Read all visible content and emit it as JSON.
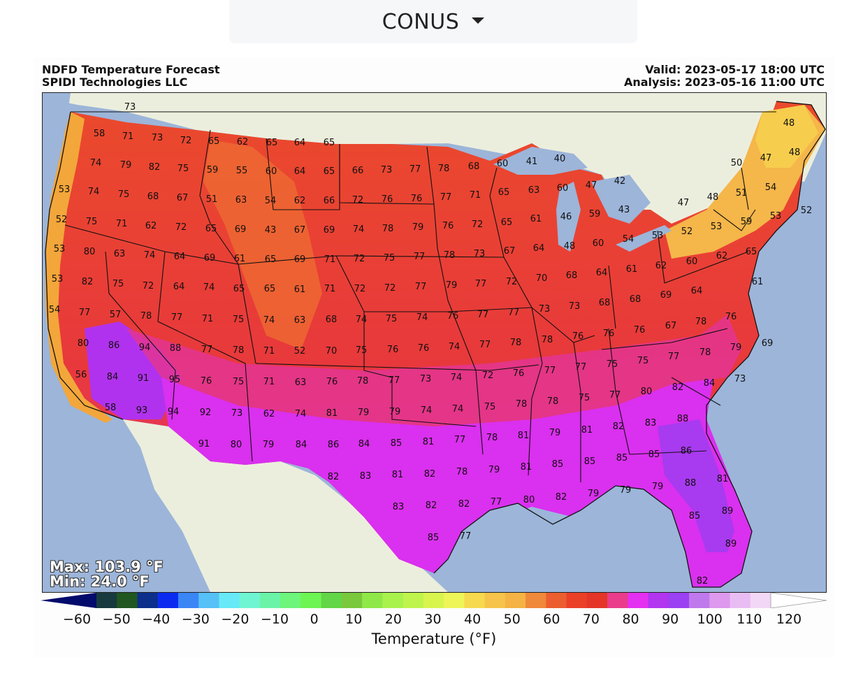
{
  "dropdown": {
    "selected": "CONUS"
  },
  "header": {
    "title_line1": "NDFD Temperature Forecast",
    "title_line2": "SPIDI Technologies LLC",
    "valid": "Valid: 2023-05-17 18:00 UTC",
    "analysis": "Analysis: 2023-05-16 11:00 UTC"
  },
  "stats": {
    "max": "Max: 103.9 °F",
    "min": "Min: 24.0 °F"
  },
  "colorbar": {
    "title": "Temperature (°F)",
    "ticks": [
      "−60",
      "−50",
      "−40",
      "−30",
      "−20",
      "−10",
      "0",
      "10",
      "20",
      "30",
      "40",
      "50",
      "60",
      "70",
      "80",
      "90",
      "100",
      "110",
      "120"
    ],
    "colors": [
      "#020a6b",
      "#173a3f",
      "#20561f",
      "#0b2f8a",
      "#0b2cf0",
      "#3a86f5",
      "#55c1f7",
      "#67e9f7",
      "#70f5d2",
      "#6bf4a8",
      "#6ef57b",
      "#6df553",
      "#62d646",
      "#7ac83c",
      "#90e848",
      "#a9f24c",
      "#bff44c",
      "#d8f54e",
      "#eef557",
      "#f7d94e",
      "#f7c44b",
      "#f5b345",
      "#f0893a",
      "#ec5e2f",
      "#ea4027",
      "#e43528",
      "#ea3c8a",
      "#e430f0",
      "#b235f0",
      "#9b40f2",
      "#c079ec",
      "#dd99ee",
      "#e9bdf3",
      "#f3d7f6",
      "#ffffff"
    ]
  },
  "map_labels": [
    [
      "73",
      185,
      152
    ],
    [
      "58",
      141,
      190
    ],
    [
      "71",
      182,
      194
    ],
    [
      "73",
      224,
      196
    ],
    [
      "72",
      265,
      200
    ],
    [
      "65",
      305,
      201
    ],
    [
      "62",
      346,
      202
    ],
    [
      "65",
      388,
      203
    ],
    [
      "64",
      428,
      203
    ],
    [
      "65",
      470,
      203
    ],
    [
      "74",
      136,
      232
    ],
    [
      "79",
      179,
      235
    ],
    [
      "82",
      220,
      238
    ],
    [
      "75",
      261,
      240
    ],
    [
      "59",
      303,
      242
    ],
    [
      "55",
      345,
      243
    ],
    [
      "60",
      387,
      244
    ],
    [
      "64",
      428,
      244
    ],
    [
      "65",
      470,
      244
    ],
    [
      "66",
      511,
      243
    ],
    [
      "73",
      552,
      242
    ],
    [
      "77",
      593,
      241
    ],
    [
      "78",
      634,
      240
    ],
    [
      "68",
      677,
      237
    ],
    [
      "60",
      718,
      233
    ],
    [
      "41",
      760,
      230
    ],
    [
      "40",
      800,
      226
    ],
    [
      "50",
      1053,
      232
    ],
    [
      "47",
      1095,
      225
    ],
    [
      "48",
      1128,
      175
    ],
    [
      "48",
      1136,
      217
    ],
    [
      "53",
      91,
      270
    ],
    [
      "74",
      133,
      273
    ],
    [
      "75",
      176,
      277
    ],
    [
      "68",
      218,
      280
    ],
    [
      "67",
      260,
      282
    ],
    [
      "51",
      302,
      284
    ],
    [
      "63",
      344,
      285
    ],
    [
      "54",
      386,
      286
    ],
    [
      "62",
      428,
      286
    ],
    [
      "66",
      470,
      286
    ],
    [
      "72",
      511,
      285
    ],
    [
      "76",
      553,
      284
    ],
    [
      "76",
      595,
      283
    ],
    [
      "77",
      637,
      281
    ],
    [
      "71",
      679,
      278
    ],
    [
      "65",
      720,
      274
    ],
    [
      "63",
      763,
      271
    ],
    [
      "60",
      804,
      268
    ],
    [
      "47",
      845,
      264
    ],
    [
      "42",
      886,
      258
    ],
    [
      "47",
      977,
      289
    ],
    [
      "48",
      1019,
      281
    ],
    [
      "51",
      1060,
      275
    ],
    [
      "54",
      1102,
      267
    ],
    [
      "52",
      87,
      313
    ],
    [
      "75",
      130,
      316
    ],
    [
      "71",
      173,
      319
    ],
    [
      "62",
      215,
      322
    ],
    [
      "72",
      258,
      324
    ],
    [
      "65",
      301,
      326
    ],
    [
      "69",
      343,
      327
    ],
    [
      "43",
      386,
      328
    ],
    [
      "67",
      428,
      328
    ],
    [
      "69",
      470,
      328
    ],
    [
      "74",
      512,
      327
    ],
    [
      "78",
      554,
      326
    ],
    [
      "79",
      597,
      324
    ],
    [
      "76",
      640,
      322
    ],
    [
      "72",
      682,
      320
    ],
    [
      "65",
      724,
      317
    ],
    [
      "61",
      766,
      312
    ],
    [
      "46",
      809,
      309
    ],
    [
      "59",
      850,
      305
    ],
    [
      "43",
      892,
      299
    ],
    [
      "52",
      982,
      330
    ],
    [
      "53",
      1024,
      323
    ],
    [
      "59",
      1067,
      316
    ],
    [
      "53",
      1109,
      308
    ],
    [
      "52",
      1153,
      300
    ],
    [
      "53",
      84,
      355
    ],
    [
      "80",
      127,
      359
    ],
    [
      "63",
      170,
      362
    ],
    [
      "74",
      213,
      364
    ],
    [
      "64",
      256,
      366
    ],
    [
      "69",
      299,
      368
    ],
    [
      "61",
      342,
      369
    ],
    [
      "65",
      386,
      370
    ],
    [
      "69",
      428,
      370
    ],
    [
      "71",
      471,
      370
    ],
    [
      "72",
      513,
      369
    ],
    [
      "75",
      556,
      368
    ],
    [
      "77",
      599,
      366
    ],
    [
      "78",
      642,
      364
    ],
    [
      "73",
      685,
      362
    ],
    [
      "67",
      728,
      358
    ],
    [
      "64",
      770,
      354
    ],
    [
      "48",
      814,
      351
    ],
    [
      "60",
      855,
      347
    ],
    [
      "54",
      898,
      341
    ],
    [
      "53",
      940,
      336
    ],
    [
      "65",
      1074,
      359
    ],
    [
      "53",
      81,
      398
    ],
    [
      "82",
      124,
      402
    ],
    [
      "75",
      168,
      405
    ],
    [
      "72",
      211,
      408
    ],
    [
      "64",
      255,
      409
    ],
    [
      "74",
      298,
      410
    ],
    [
      "65",
      341,
      412
    ],
    [
      "65",
      385,
      412
    ],
    [
      "61",
      428,
      413
    ],
    [
      "71",
      471,
      412
    ],
    [
      "72",
      514,
      412
    ],
    [
      "72",
      557,
      411
    ],
    [
      "77",
      601,
      409
    ],
    [
      "79",
      645,
      407
    ],
    [
      "77",
      687,
      405
    ],
    [
      "72",
      731,
      402
    ],
    [
      "70",
      774,
      397
    ],
    [
      "68",
      817,
      393
    ],
    [
      "64",
      860,
      389
    ],
    [
      "61",
      903,
      384
    ],
    [
      "62",
      945,
      379
    ],
    [
      "60",
      989,
      373
    ],
    [
      "62",
      1032,
      365
    ],
    [
      "61",
      1083,
      402
    ],
    [
      "54",
      77,
      442
    ],
    [
      "77",
      120,
      446
    ],
    [
      "57",
      164,
      449
    ],
    [
      "78",
      208,
      451
    ],
    [
      "77",
      252,
      453
    ],
    [
      "71",
      296,
      455
    ],
    [
      "75",
      340,
      456
    ],
    [
      "74",
      384,
      457
    ],
    [
      "63",
      428,
      457
    ],
    [
      "68",
      473,
      456
    ],
    [
      "74",
      516,
      456
    ],
    [
      "75",
      559,
      455
    ],
    [
      "74",
      603,
      453
    ],
    [
      "76",
      647,
      451
    ],
    [
      "77",
      690,
      449
    ],
    [
      "77",
      734,
      446
    ],
    [
      "73",
      778,
      441
    ],
    [
      "73",
      821,
      437
    ],
    [
      "68",
      864,
      432
    ],
    [
      "68",
      908,
      427
    ],
    [
      "69",
      952,
      421
    ],
    [
      "64",
      996,
      415
    ],
    [
      "80",
      118,
      490
    ],
    [
      "86",
      162,
      493
    ],
    [
      "94",
      206,
      496
    ],
    [
      "88",
      250,
      497
    ],
    [
      "77",
      295,
      499
    ],
    [
      "78",
      340,
      500
    ],
    [
      "71",
      384,
      501
    ],
    [
      "52",
      428,
      501
    ],
    [
      "70",
      473,
      501
    ],
    [
      "75",
      516,
      500
    ],
    [
      "76",
      561,
      499
    ],
    [
      "76",
      605,
      497
    ],
    [
      "74",
      649,
      495
    ],
    [
      "77",
      693,
      492
    ],
    [
      "78",
      737,
      489
    ],
    [
      "78",
      782,
      485
    ],
    [
      "76",
      826,
      480
    ],
    [
      "76",
      870,
      476
    ],
    [
      "76",
      914,
      471
    ],
    [
      "67",
      959,
      465
    ],
    [
      "78",
      1002,
      459
    ],
    [
      "76",
      1045,
      452
    ],
    [
      "69",
      1097,
      490
    ],
    [
      "56",
      115,
      535
    ],
    [
      "84",
      160,
      538
    ],
    [
      "91",
      204,
      540
    ],
    [
      "95",
      249,
      542
    ],
    [
      "76",
      294,
      544
    ],
    [
      "75",
      340,
      545
    ],
    [
      "71",
      384,
      545
    ],
    [
      "63",
      429,
      546
    ],
    [
      "76",
      474,
      545
    ],
    [
      "78",
      518,
      544
    ],
    [
      "77",
      563,
      543
    ],
    [
      "73",
      608,
      541
    ],
    [
      "74",
      652,
      539
    ],
    [
      "72",
      697,
      536
    ],
    [
      "76",
      741,
      533
    ],
    [
      "77",
      786,
      529
    ],
    [
      "77",
      830,
      524
    ],
    [
      "75",
      875,
      520
    ],
    [
      "75",
      919,
      515
    ],
    [
      "77",
      963,
      509
    ],
    [
      "78",
      1008,
      503
    ],
    [
      "79",
      1052,
      496
    ],
    [
      "73",
      1058,
      541
    ],
    [
      "58",
      157,
      582
    ],
    [
      "93",
      202,
      586
    ],
    [
      "94",
      247,
      588
    ],
    [
      "92",
      293,
      589
    ],
    [
      "73",
      338,
      590
    ],
    [
      "62",
      384,
      591
    ],
    [
      "74",
      429,
      591
    ],
    [
      "81",
      474,
      590
    ],
    [
      "79",
      519,
      589
    ],
    [
      "79",
      564,
      588
    ],
    [
      "74",
      609,
      586
    ],
    [
      "74",
      654,
      584
    ],
    [
      "75",
      700,
      581
    ],
    [
      "78",
      745,
      577
    ],
    [
      "78",
      790,
      573
    ],
    [
      "75",
      835,
      568
    ],
    [
      "77",
      879,
      564
    ],
    [
      "80",
      924,
      559
    ],
    [
      "82",
      969,
      553
    ],
    [
      "84",
      1014,
      547
    ],
    [
      "91",
      291,
      634
    ],
    [
      "80",
      337,
      635
    ],
    [
      "79",
      383,
      635
    ],
    [
      "84",
      430,
      635
    ],
    [
      "86",
      476,
      635
    ],
    [
      "84",
      520,
      634
    ],
    [
      "85",
      566,
      633
    ],
    [
      "81",
      612,
      631
    ],
    [
      "77",
      657,
      628
    ],
    [
      "78",
      703,
      625
    ],
    [
      "81",
      748,
      622
    ],
    [
      "79",
      793,
      618
    ],
    [
      "81",
      839,
      614
    ],
    [
      "82",
      884,
      609
    ],
    [
      "83",
      930,
      604
    ],
    [
      "88",
      976,
      598
    ],
    [
      "82",
      476,
      681
    ],
    [
      "83",
      522,
      680
    ],
    [
      "81",
      568,
      678
    ],
    [
      "82",
      614,
      677
    ],
    [
      "78",
      660,
      674
    ],
    [
      "79",
      706,
      671
    ],
    [
      "81",
      752,
      667
    ],
    [
      "85",
      797,
      663
    ],
    [
      "85",
      843,
      659
    ],
    [
      "85",
      889,
      654
    ],
    [
      "85",
      935,
      649
    ],
    [
      "86",
      981,
      644
    ],
    [
      "83",
      569,
      724
    ],
    [
      "82",
      616,
      722
    ],
    [
      "82",
      663,
      720
    ],
    [
      "77",
      709,
      717
    ],
    [
      "80",
      756,
      714
    ],
    [
      "82",
      802,
      710
    ],
    [
      "79",
      848,
      705
    ],
    [
      "79",
      894,
      700
    ],
    [
      "79",
      940,
      695
    ],
    [
      "88",
      987,
      690
    ],
    [
      "81",
      1033,
      684
    ],
    [
      "85",
      619,
      768
    ],
    [
      "77",
      665,
      766
    ],
    [
      "85",
      993,
      737
    ],
    [
      "89",
      1040,
      730
    ],
    [
      "89",
      1045,
      777
    ],
    [
      "82",
      1004,
      830
    ]
  ]
}
